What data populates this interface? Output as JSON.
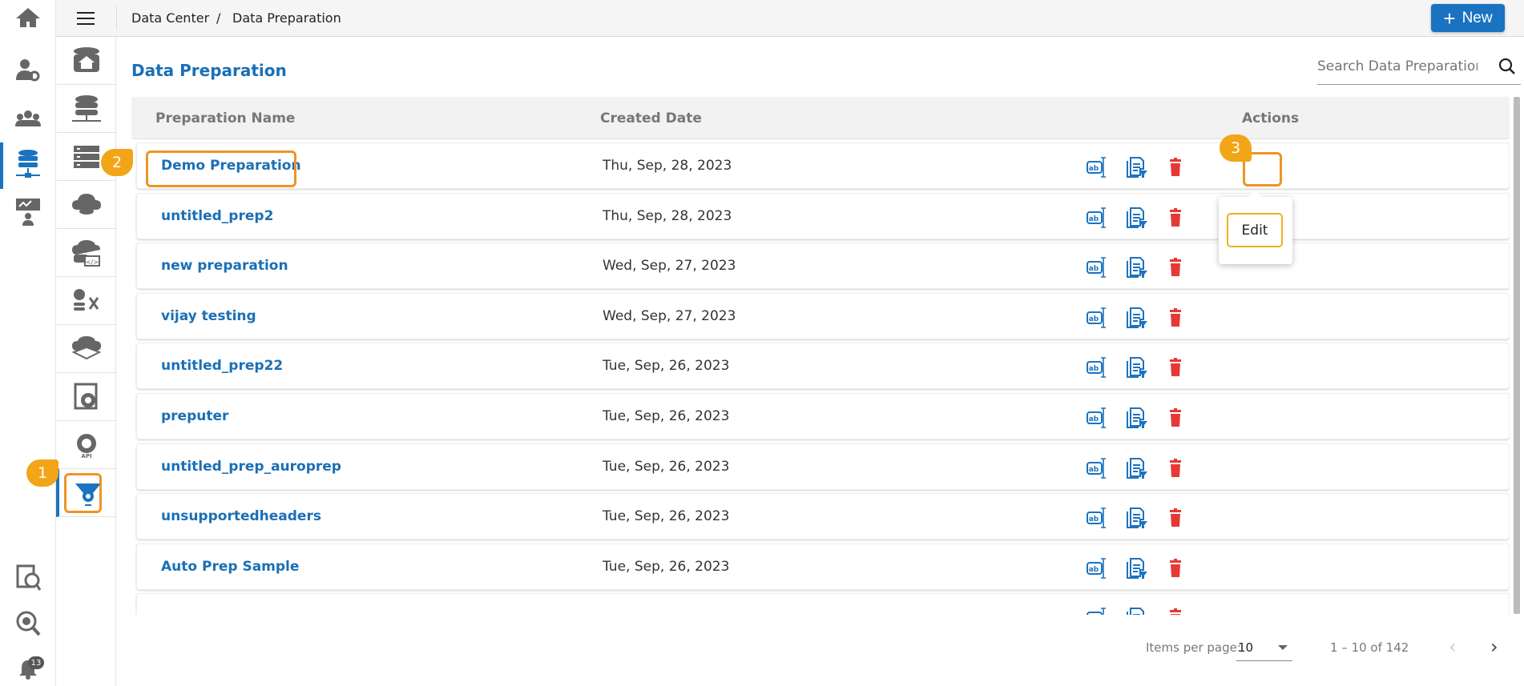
{
  "header": {
    "breadcrumb": [
      "Data Center",
      "Data Preparation"
    ],
    "separator": "/",
    "new_label": "New",
    "menu_icon": "hamburger-icon"
  },
  "page": {
    "title": "Data Preparation",
    "search_placeholder": "Search Data Preparation"
  },
  "rail": {
    "items": [
      "home-icon",
      "user-settings-icon",
      "users-group-icon",
      "data-center-icon",
      "presentation-icon"
    ],
    "bottom": [
      "data-catalog-icon",
      "data-search-icon",
      "notification-bell-icon"
    ],
    "notification_count": "13",
    "active": "data-center-icon"
  },
  "sub_sidebar": {
    "items": [
      "data-home-icon",
      "data-connectors-icon",
      "data-store-icon",
      "data-cloud-icon",
      "data-code-icon",
      "data-transform-icon",
      "data-sandbox-icon",
      "data-settings-icon",
      "data-api-icon",
      "data-preparation-icon"
    ],
    "active": "data-preparation-icon"
  },
  "table": {
    "columns": [
      "Preparation Name",
      "Created Date",
      "Actions"
    ],
    "rows": [
      {
        "name": "Demo Preparation",
        "date": "Thu, Sep, 28, 2023"
      },
      {
        "name": "untitled_prep2",
        "date": "Thu, Sep, 28, 2023"
      },
      {
        "name": "new preparation",
        "date": "Wed, Sep, 27, 2023"
      },
      {
        "name": "vijay testing",
        "date": "Wed, Sep, 27, 2023"
      },
      {
        "name": "untitled_prep22",
        "date": "Tue, Sep, 26, 2023"
      },
      {
        "name": "preputer",
        "date": "Tue, Sep, 26, 2023"
      },
      {
        "name": "untitled_prep_auroprep",
        "date": "Tue, Sep, 26, 2023"
      },
      {
        "name": "unsupportedheaders",
        "date": "Tue, Sep, 26, 2023"
      },
      {
        "name": "Auto Prep Sample",
        "date": "Tue, Sep, 26, 2023"
      },
      {
        "name": "",
        "date": ""
      }
    ],
    "action_icons": [
      "rename-icon",
      "edit-preparation-icon",
      "delete-icon"
    ]
  },
  "popup": {
    "edit_label": "Edit"
  },
  "callouts": [
    "1",
    "2",
    "3"
  ],
  "pagination": {
    "items_per_page_label": "Items per page:",
    "items_per_page": "10",
    "range": "1 – 10 of 142"
  },
  "colors": {
    "primary": "#1a73c0",
    "link": "#1a6fb5",
    "delete": "#e53935",
    "callout": "#f2a516",
    "highlight": "#ed9525"
  }
}
